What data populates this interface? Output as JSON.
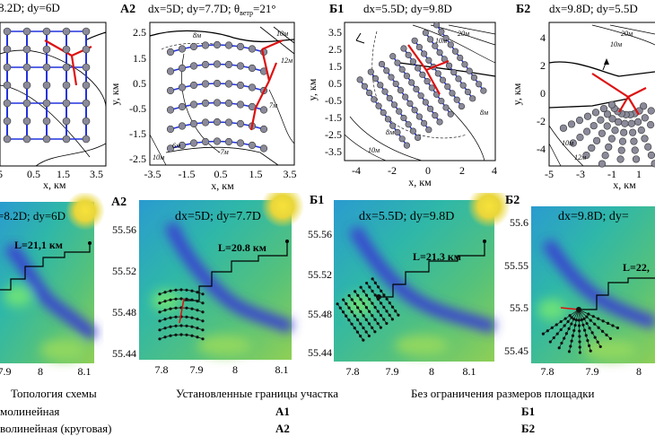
{
  "figure": {
    "top_row": [
      {
        "id": "A1",
        "label": "",
        "title": "8.2D; dy=6D",
        "x_ticks": [
          "5",
          "0.5",
          "1.5",
          "3.5"
        ],
        "y_ticks": [],
        "xlabel": "x, км",
        "ylabel": ""
      },
      {
        "id": "A2",
        "label": "А2",
        "title": "dx=5D; dy=7.7D; θ",
        "title_sub": "ветр",
        "title_end": "=21°",
        "x_ticks": [
          "-3.5",
          "-1.5",
          "0.5",
          "1.5",
          "3.5"
        ],
        "y_ticks": [
          "2.5",
          "1.5",
          "0.5",
          "-0.5",
          "-1.5",
          "-2.5"
        ],
        "xlabel": "x, км",
        "ylabel": "y, км",
        "contour_labels": [
          "8м",
          "10м",
          "12м",
          "7м",
          "6м",
          "-7м",
          "10м"
        ]
      },
      {
        "id": "B1",
        "label": "Б1",
        "title": "dx=5.5D; dy=9.8D",
        "x_ticks": [
          "-4",
          "-2",
          "0",
          "2",
          "4"
        ],
        "y_ticks": [
          "3.5",
          "2.5",
          "1.5",
          "0.5",
          "-0.5",
          "-1.5",
          "-2.5",
          "-3.5"
        ],
        "xlabel": "x, км",
        "ylabel": "y, км",
        "contour_labels": [
          "20м",
          "10м",
          "8м",
          "8м",
          "10м"
        ]
      },
      {
        "id": "B2",
        "label": "Б2",
        "title": "dx=9.8D; dy=5.5D",
        "x_ticks": [
          "-5",
          "-3",
          "-1",
          "1"
        ],
        "y_ticks": [
          "4",
          "2",
          "0",
          "-2",
          "-4"
        ],
        "xlabel": "x, км",
        "ylabel": "y, км",
        "contour_labels": [
          "20м",
          "10м",
          "10м",
          "12м"
        ]
      }
    ],
    "bottom_row": [
      {
        "id": "A1",
        "label": "",
        "title": "=8.2D; dy=6D",
        "route": "L=21,1 км",
        "x_ticks": [
          "7.9",
          "8",
          "8.1"
        ],
        "y_ticks": []
      },
      {
        "id": "A2",
        "label": "А2",
        "title": "dx=5D; dy=7.7D",
        "route": "L=20.8 км",
        "x_ticks": [
          "7.8",
          "7.9",
          "8",
          "8.1"
        ],
        "y_ticks": [
          "55.56",
          "55.52",
          "55.48",
          "55.44"
        ]
      },
      {
        "id": "B1",
        "label": "Б1",
        "title": "dx=5.5D; dy=9.8D",
        "route": "L=21.3 км",
        "x_ticks": [
          "7.8",
          "7.9",
          "8",
          "8.1"
        ],
        "y_ticks": [
          "55.56",
          "55.52",
          "55.48",
          "55.44"
        ]
      },
      {
        "id": "B2",
        "label": "Б2",
        "title": "dx=9.8D; dy=",
        "route": "L=22,",
        "x_ticks": [
          "7.8",
          "7.9",
          "8"
        ],
        "y_ticks": [
          "55.6",
          "55.55",
          "55.5",
          "55.45"
        ]
      }
    ]
  },
  "table": {
    "col1_header": "Топология схемы",
    "col2_header": "Установленные границы участка",
    "col3_header": "Без ограничения размеров площадки",
    "rows": [
      {
        "topology": "молинейная",
        "bounded": "А1",
        "unbounded": "Б1"
      },
      {
        "topology": "волинейная (круговая)",
        "bounded": "А2",
        "unbounded": "Б2"
      }
    ]
  }
}
